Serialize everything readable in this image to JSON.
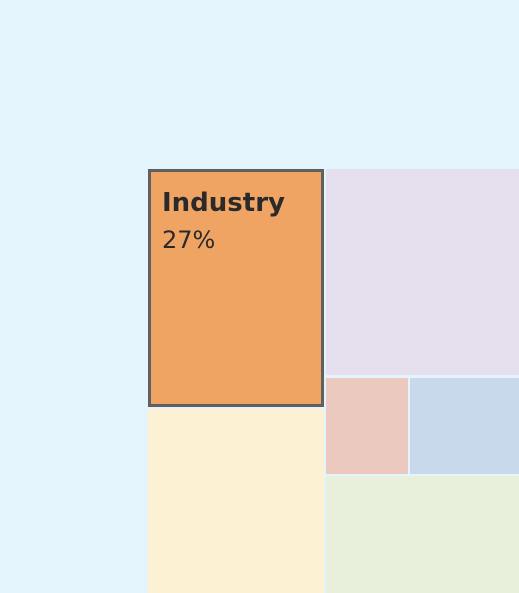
{
  "chart_data": {
    "type": "treemap",
    "tiles": [
      {
        "id": "largest",
        "name": "",
        "value_label": "",
        "color": "#e4f4fc",
        "highlighted": false
      },
      {
        "id": "industry",
        "name": "Industry",
        "value_label": "27%",
        "color": "#f0a464",
        "highlighted": true
      },
      {
        "id": "purple",
        "name": "",
        "value_label": "",
        "color": "#e6dfee",
        "highlighted": false
      },
      {
        "id": "yellow",
        "name": "",
        "value_label": "",
        "color": "#fdf1d3",
        "highlighted": false
      },
      {
        "id": "pink",
        "name": "",
        "value_label": "",
        "color": "#ecc9be",
        "highlighted": false
      },
      {
        "id": "blue",
        "name": "",
        "value_label": "",
        "color": "#c7d9ea",
        "highlighted": false
      },
      {
        "id": "green",
        "name": "",
        "value_label": "",
        "color": "#e8f0dc",
        "highlighted": false
      }
    ],
    "highlight_border_color": "#606060",
    "divider_color": "#ffffff"
  }
}
